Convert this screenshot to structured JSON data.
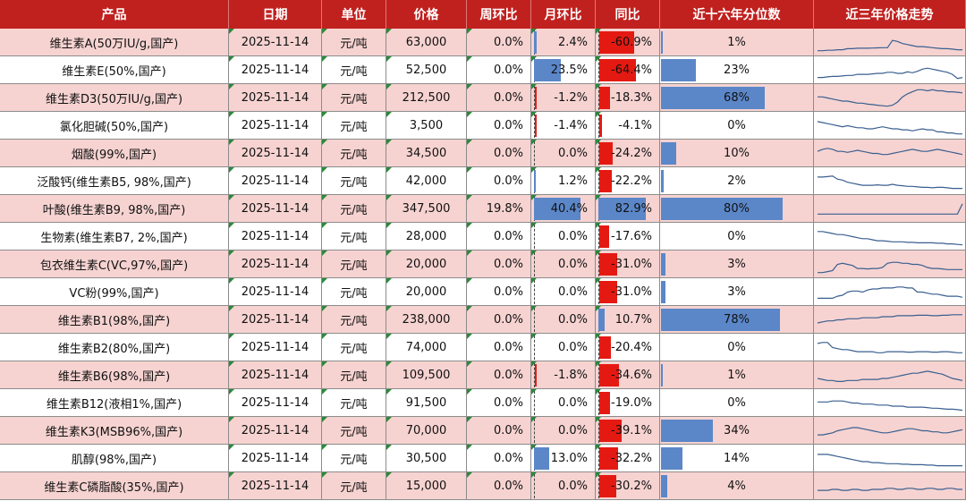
{
  "headers": [
    "产品",
    "日期",
    "单位",
    "价格",
    "周环比",
    "月环比",
    "同比",
    "近十六年分位数",
    "近三年价格走势"
  ],
  "colors": {
    "header_bg": "#c0211f",
    "row_pink": "#f6d3d1",
    "bar_blue": "#5b87c9",
    "bar_red": "#e41a12"
  },
  "rows": [
    {
      "product": "维生素A(50万IU/g,国产)",
      "date": "2025-11-14",
      "unit": "元/吨",
      "price": "63,000",
      "wow": "0.0%",
      "mom": "2.4%",
      "mom_value": 2.4,
      "yoy": "-60.9%",
      "yoy_value": -60.9,
      "pct": "1%",
      "pct_value": 1,
      "highlight": true
    },
    {
      "product": "维生素E(50%,国产)",
      "date": "2025-11-14",
      "unit": "元/吨",
      "price": "52,500",
      "wow": "0.0%",
      "mom": "23.5%",
      "mom_value": 23.5,
      "yoy": "-64.4%",
      "yoy_value": -64.4,
      "pct": "23%",
      "pct_value": 23,
      "highlight": false
    },
    {
      "product": "维生素D3(50万IU/g,国产)",
      "date": "2025-11-14",
      "unit": "元/吨",
      "price": "212,500",
      "wow": "0.0%",
      "mom": "-1.2%",
      "mom_value": -1.2,
      "yoy": "-18.3%",
      "yoy_value": -18.3,
      "pct": "68%",
      "pct_value": 68,
      "highlight": true
    },
    {
      "product": "氯化胆碱(50%,国产)",
      "date": "2025-11-14",
      "unit": "元/吨",
      "price": "3,500",
      "wow": "0.0%",
      "mom": "-1.4%",
      "mom_value": -1.4,
      "yoy": "-4.1%",
      "yoy_value": -4.1,
      "pct": "0%",
      "pct_value": 0,
      "highlight": false
    },
    {
      "product": "烟酸(99%,国产)",
      "date": "2025-11-14",
      "unit": "元/吨",
      "price": "34,500",
      "wow": "0.0%",
      "mom": "0.0%",
      "mom_value": 0,
      "yoy": "-24.2%",
      "yoy_value": -24.2,
      "pct": "10%",
      "pct_value": 10,
      "highlight": true
    },
    {
      "product": "泛酸钙(维生素B5, 98%,国产)",
      "date": "2025-11-14",
      "unit": "元/吨",
      "price": "42,000",
      "wow": "0.0%",
      "mom": "1.2%",
      "mom_value": 1.2,
      "yoy": "-22.2%",
      "yoy_value": -22.2,
      "pct": "2%",
      "pct_value": 2,
      "highlight": false
    },
    {
      "product": "叶酸(维生素B9, 98%,国产)",
      "date": "2025-11-14",
      "unit": "元/吨",
      "price": "347,500",
      "wow": "19.8%",
      "mom": "40.4%",
      "mom_value": 40.4,
      "yoy": "82.9%",
      "yoy_value": 82.9,
      "pct": "80%",
      "pct_value": 80,
      "highlight": true
    },
    {
      "product": "生物素(维生素B7, 2%,国产)",
      "date": "2025-11-14",
      "unit": "元/吨",
      "price": "28,000",
      "wow": "0.0%",
      "mom": "0.0%",
      "mom_value": 0,
      "yoy": "-17.6%",
      "yoy_value": -17.6,
      "pct": "0%",
      "pct_value": 0,
      "highlight": false
    },
    {
      "product": "包衣维生素C(VC,97%,国产)",
      "date": "2025-11-14",
      "unit": "元/吨",
      "price": "20,000",
      "wow": "0.0%",
      "mom": "0.0%",
      "mom_value": 0,
      "yoy": "-31.0%",
      "yoy_value": -31.0,
      "pct": "3%",
      "pct_value": 3,
      "highlight": true
    },
    {
      "product": "VC粉(99%,国产)",
      "date": "2025-11-14",
      "unit": "元/吨",
      "price": "20,000",
      "wow": "0.0%",
      "mom": "0.0%",
      "mom_value": 0,
      "yoy": "-31.0%",
      "yoy_value": -31.0,
      "pct": "3%",
      "pct_value": 3,
      "highlight": false
    },
    {
      "product": "维生素B1(98%,国产)",
      "date": "2025-11-14",
      "unit": "元/吨",
      "price": "238,000",
      "wow": "0.0%",
      "mom": "0.0%",
      "mom_value": 0,
      "yoy": "10.7%",
      "yoy_value": 10.7,
      "pct": "78%",
      "pct_value": 78,
      "highlight": true
    },
    {
      "product": "维生素B2(80%,国产)",
      "date": "2025-11-14",
      "unit": "元/吨",
      "price": "74,000",
      "wow": "0.0%",
      "mom": "0.0%",
      "mom_value": 0,
      "yoy": "-20.4%",
      "yoy_value": -20.4,
      "pct": "0%",
      "pct_value": 0,
      "highlight": false
    },
    {
      "product": "维生素B6(98%,国产)",
      "date": "2025-11-14",
      "unit": "元/吨",
      "price": "109,500",
      "wow": "0.0%",
      "mom": "-1.8%",
      "mom_value": -1.8,
      "yoy": "-34.6%",
      "yoy_value": -34.6,
      "pct": "1%",
      "pct_value": 1,
      "highlight": true
    },
    {
      "product": "维生素B12(液相1%,国产)",
      "date": "2025-11-14",
      "unit": "元/吨",
      "price": "91,500",
      "wow": "0.0%",
      "mom": "0.0%",
      "mom_value": 0,
      "yoy": "-19.0%",
      "yoy_value": -19.0,
      "pct": "0%",
      "pct_value": 0,
      "highlight": false
    },
    {
      "product": "维生素K3(MSB96%,国产)",
      "date": "2025-11-14",
      "unit": "元/吨",
      "price": "70,000",
      "wow": "0.0%",
      "mom": "0.0%",
      "mom_value": 0,
      "yoy": "-39.1%",
      "yoy_value": -39.1,
      "pct": "34%",
      "pct_value": 34,
      "highlight": true
    },
    {
      "product": "肌醇(98%,国产)",
      "date": "2025-11-14",
      "unit": "元/吨",
      "price": "30,500",
      "wow": "0.0%",
      "mom": "13.0%",
      "mom_value": 13.0,
      "yoy": "-32.2%",
      "yoy_value": -32.2,
      "pct": "14%",
      "pct_value": 14,
      "highlight": false
    },
    {
      "product": "维生素C磷脂酸(35%,国产)",
      "date": "2025-11-14",
      "unit": "元/吨",
      "price": "15,000",
      "wow": "0.0%",
      "mom": "0.0%",
      "mom_value": 0,
      "yoy": "-30.2%",
      "yoy_value": -30.2,
      "pct": "4%",
      "pct_value": 4,
      "highlight": true
    }
  ],
  "sparklines": [
    [
      0.1,
      0.1,
      0.12,
      0.12,
      0.15,
      0.15,
      0.2,
      0.2,
      0.22,
      0.22,
      0.22,
      0.23,
      0.24,
      0.25,
      0.25,
      0.6,
      0.55,
      0.45,
      0.4,
      0.35,
      0.3,
      0.3,
      0.28,
      0.25,
      0.22,
      0.2,
      0.2,
      0.18,
      0.15,
      0.15
    ],
    [
      0.15,
      0.15,
      0.18,
      0.2,
      0.2,
      0.22,
      0.25,
      0.25,
      0.3,
      0.3,
      0.3,
      0.32,
      0.35,
      0.35,
      0.4,
      0.4,
      0.35,
      0.35,
      0.42,
      0.38,
      0.45,
      0.55,
      0.6,
      0.55,
      0.5,
      0.45,
      0.4,
      0.3,
      0.1,
      0.15
    ],
    [
      0.55,
      0.55,
      0.5,
      0.45,
      0.4,
      0.35,
      0.35,
      0.3,
      0.25,
      0.25,
      0.2,
      0.18,
      0.15,
      0.12,
      0.1,
      0.15,
      0.3,
      0.55,
      0.7,
      0.8,
      0.9,
      0.9,
      0.85,
      0.9,
      0.85,
      0.85,
      0.8,
      0.8,
      0.78,
      0.75
    ],
    [
      0.7,
      0.65,
      0.6,
      0.55,
      0.5,
      0.45,
      0.5,
      0.45,
      0.4,
      0.4,
      0.35,
      0.35,
      0.4,
      0.45,
      0.4,
      0.35,
      0.35,
      0.3,
      0.3,
      0.25,
      0.3,
      0.35,
      0.3,
      0.3,
      0.2,
      0.2,
      0.15,
      0.15,
      0.1,
      0.1
    ],
    [
      0.6,
      0.7,
      0.75,
      0.7,
      0.6,
      0.6,
      0.55,
      0.6,
      0.65,
      0.6,
      0.55,
      0.5,
      0.5,
      0.45,
      0.45,
      0.5,
      0.55,
      0.6,
      0.65,
      0.7,
      0.65,
      0.6,
      0.6,
      0.65,
      0.7,
      0.65,
      0.6,
      0.55,
      0.5,
      0.45
    ],
    [
      0.7,
      0.7,
      0.72,
      0.75,
      0.6,
      0.55,
      0.45,
      0.4,
      0.35,
      0.3,
      0.3,
      0.3,
      0.32,
      0.3,
      0.3,
      0.35,
      0.3,
      0.28,
      0.25,
      0.25,
      0.22,
      0.2,
      0.2,
      0.18,
      0.2,
      0.2,
      0.18,
      0.15,
      0.15,
      0.15
    ],
    [
      0.25,
      0.25,
      0.25,
      0.25,
      0.25,
      0.25,
      0.25,
      0.25,
      0.25,
      0.25,
      0.25,
      0.25,
      0.25,
      0.25,
      0.25,
      0.25,
      0.25,
      0.25,
      0.25,
      0.25,
      0.25,
      0.25,
      0.25,
      0.25,
      0.25,
      0.25,
      0.25,
      0.25,
      0.25,
      0.75
    ],
    [
      0.75,
      0.75,
      0.7,
      0.65,
      0.6,
      0.6,
      0.55,
      0.5,
      0.45,
      0.4,
      0.4,
      0.35,
      0.3,
      0.3,
      0.28,
      0.25,
      0.25,
      0.25,
      0.22,
      0.22,
      0.2,
      0.2,
      0.2,
      0.2,
      0.18,
      0.18,
      0.15,
      0.15,
      0.12,
      0.1
    ],
    [
      0.1,
      0.1,
      0.15,
      0.2,
      0.5,
      0.55,
      0.5,
      0.45,
      0.3,
      0.3,
      0.28,
      0.3,
      0.3,
      0.35,
      0.55,
      0.6,
      0.6,
      0.55,
      0.55,
      0.5,
      0.5,
      0.45,
      0.35,
      0.3,
      0.3,
      0.28,
      0.25,
      0.25,
      0.25,
      0.25
    ],
    [
      0.2,
      0.2,
      0.2,
      0.2,
      0.3,
      0.35,
      0.5,
      0.55,
      0.55,
      0.5,
      0.6,
      0.65,
      0.65,
      0.7,
      0.7,
      0.7,
      0.75,
      0.75,
      0.7,
      0.7,
      0.5,
      0.5,
      0.45,
      0.4,
      0.4,
      0.35,
      0.3,
      0.3,
      0.3,
      0.25
    ],
    [
      0.35,
      0.4,
      0.45,
      0.45,
      0.5,
      0.5,
      0.55,
      0.55,
      0.55,
      0.6,
      0.6,
      0.6,
      0.6,
      0.65,
      0.65,
      0.65,
      0.7,
      0.7,
      0.7,
      0.7,
      0.72,
      0.72,
      0.72,
      0.7,
      0.7,
      0.72,
      0.72,
      0.75,
      0.75,
      0.75
    ],
    [
      0.7,
      0.75,
      0.75,
      0.5,
      0.45,
      0.4,
      0.4,
      0.35,
      0.3,
      0.3,
      0.3,
      0.3,
      0.25,
      0.25,
      0.3,
      0.3,
      0.3,
      0.3,
      0.28,
      0.28,
      0.3,
      0.3,
      0.3,
      0.28,
      0.28,
      0.3,
      0.3,
      0.28,
      0.25,
      0.25
    ],
    [
      0.35,
      0.3,
      0.25,
      0.25,
      0.2,
      0.2,
      0.25,
      0.25,
      0.25,
      0.3,
      0.3,
      0.3,
      0.3,
      0.35,
      0.35,
      0.4,
      0.45,
      0.5,
      0.55,
      0.6,
      0.6,
      0.65,
      0.7,
      0.65,
      0.6,
      0.55,
      0.45,
      0.35,
      0.3,
      0.25
    ],
    [
      0.55,
      0.55,
      0.55,
      0.6,
      0.6,
      0.6,
      0.55,
      0.5,
      0.5,
      0.45,
      0.45,
      0.45,
      0.4,
      0.4,
      0.4,
      0.35,
      0.35,
      0.35,
      0.3,
      0.3,
      0.3,
      0.3,
      0.28,
      0.25,
      0.25,
      0.22,
      0.2,
      0.2,
      0.18,
      0.15
    ],
    [
      0.3,
      0.3,
      0.35,
      0.4,
      0.5,
      0.55,
      0.6,
      0.65,
      0.65,
      0.6,
      0.55,
      0.5,
      0.45,
      0.4,
      0.4,
      0.45,
      0.5,
      0.55,
      0.6,
      0.6,
      0.55,
      0.5,
      0.5,
      0.45,
      0.45,
      0.4,
      0.4,
      0.45,
      0.5,
      0.55
    ],
    [
      0.7,
      0.7,
      0.7,
      0.65,
      0.6,
      0.55,
      0.5,
      0.45,
      0.4,
      0.35,
      0.35,
      0.3,
      0.3,
      0.28,
      0.25,
      0.25,
      0.25,
      0.22,
      0.22,
      0.2,
      0.2,
      0.2,
      0.18,
      0.18,
      0.15,
      0.15,
      0.15,
      0.15,
      0.15,
      0.15
    ],
    [
      0.3,
      0.3,
      0.3,
      0.35,
      0.35,
      0.3,
      0.3,
      0.35,
      0.35,
      0.3,
      0.3,
      0.35,
      0.35,
      0.35,
      0.4,
      0.4,
      0.35,
      0.35,
      0.4,
      0.4,
      0.35,
      0.35,
      0.4,
      0.4,
      0.35,
      0.35,
      0.4,
      0.4,
      0.35,
      0.35
    ]
  ]
}
